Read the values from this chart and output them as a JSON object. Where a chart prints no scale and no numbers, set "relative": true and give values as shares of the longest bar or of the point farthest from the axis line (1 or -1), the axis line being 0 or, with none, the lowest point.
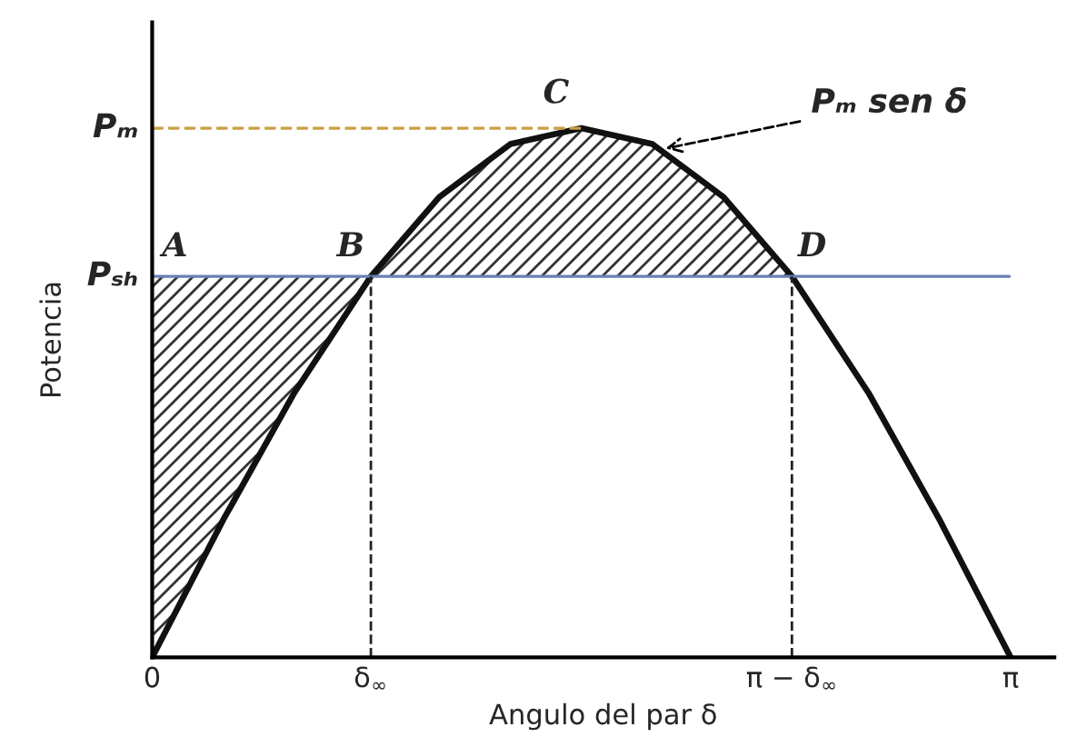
{
  "chart_data": {
    "type": "line",
    "relative": true,
    "xlabel": "Angulo del par δ",
    "ylabel": "Potencia",
    "x": [
      0,
      0.26,
      0.52,
      0.8,
      1.05,
      1.31,
      1.57,
      1.83,
      2.09,
      2.34,
      2.62,
      2.88,
      3.14
    ],
    "series": [
      {
        "color": "#111111",
        "values": [
          0,
          0.26,
          0.5,
          0.72,
          0.87,
          0.97,
          1,
          0.97,
          0.87,
          0.72,
          0.5,
          0.26,
          0
        ]
      }
    ],
    "xlim": [
      0,
      3.3
    ],
    "xticks": [
      0,
      {
        "value": 0.8,
        "label": "δ$_{∞}$"
      },
      {
        "value": 2.34,
        "label": "π − δ$_{∞}$"
      },
      {
        "value": 3.14,
        "label": "π"
      }
    ],
    "ref_lines": [
      {
        "axis": "y",
        "value": 1,
        "label": "Pₘ",
        "color": "#c8a040",
        "line_style": "dashed"
      },
      {
        "axis": "y",
        "value": 0.72,
        "label": "Pₛₕ",
        "color": "#6a7fb5",
        "line_style": "solid"
      },
      {
        "axis": "x",
        "value": 0.8,
        "color": "#222222",
        "line_style": "dashed"
      },
      {
        "axis": "x",
        "value": 2.34,
        "color": "#222222",
        "line_style": "dashed"
      }
    ],
    "annotations": [
      {
        "text": "A",
        "x": 0,
        "y": 0.72
      },
      {
        "text": "B",
        "x": 0.8,
        "y": 0.72
      },
      {
        "text": "C",
        "x": 1.57,
        "y": 1
      },
      {
        "text": "D",
        "x": 2.34,
        "y": 0.72
      },
      {
        "text": "Pₘ sen δ",
        "x": 1.86,
        "y": 0.96
      }
    ],
    "grid": false,
    "legend": false,
    "marker": "none",
    "line_style": "solid"
  }
}
